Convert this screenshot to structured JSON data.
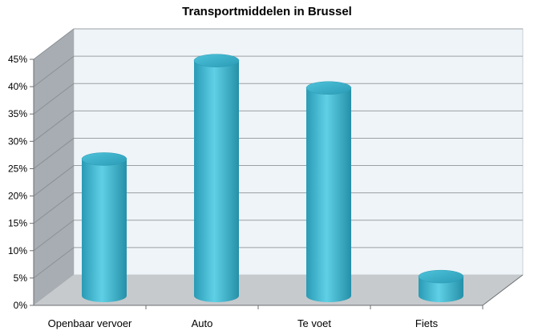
{
  "chart_data": {
    "type": "bar",
    "style": "3d-cylinder",
    "title": "Transportmiddelen in Brussel",
    "xlabel": "",
    "ylabel": "",
    "categories": [
      "Openbaar vervoer",
      "Auto",
      "Te voet",
      "Fiets"
    ],
    "values": [
      25,
      43,
      38,
      3.5
    ],
    "ylim": [
      0,
      45
    ],
    "yticks": [
      "0%",
      "5%",
      "10%",
      "15%",
      "20%",
      "25%",
      "30%",
      "35%",
      "40%",
      "45%"
    ],
    "grid": true,
    "legend": "none",
    "colors": {
      "bar": "#3fb6d0",
      "bar_top": "#5cc9df",
      "wall": "#eef4f8",
      "side_wall": "#a7adb2",
      "floor": "#c6cacd",
      "grid": "#9aa0a4"
    }
  }
}
